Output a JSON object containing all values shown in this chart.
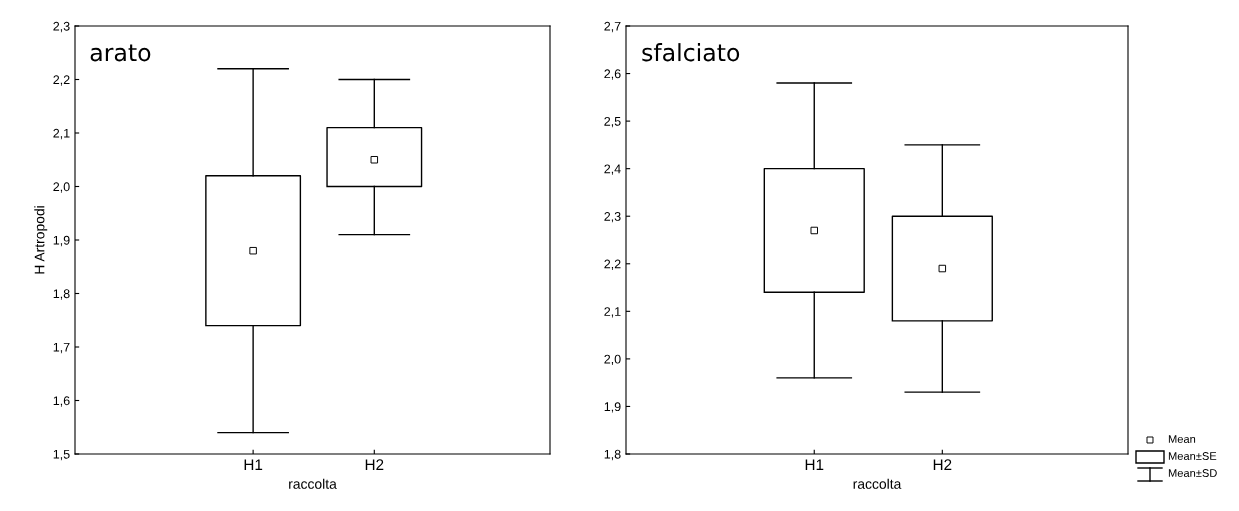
{
  "chart_data": [
    {
      "type": "box",
      "title": "arato",
      "xlabel": "raccolta",
      "ylabel": "H Artropodi",
      "categories": [
        "H1",
        "H2"
      ],
      "boxes": [
        {
          "low": 1.54,
          "q1": 1.74,
          "q3": 2.02,
          "high": 2.22,
          "mean": 1.88
        },
        {
          "low": 1.91,
          "q1": 2.0,
          "q3": 2.11,
          "high": 2.2,
          "mean": 2.05
        }
      ],
      "ylim": [
        1.5,
        2.3
      ],
      "yticks": [
        {
          "value": 1.5,
          "label": "1,5"
        },
        {
          "value": 1.6,
          "label": "1,6"
        },
        {
          "value": 1.7,
          "label": "1,7"
        },
        {
          "value": 1.8,
          "label": "1,8"
        },
        {
          "value": 1.9,
          "label": "1,9"
        },
        {
          "value": 2.0,
          "label": "2,0"
        },
        {
          "value": 2.1,
          "label": "2,1"
        },
        {
          "value": 2.2,
          "label": "2,2"
        },
        {
          "value": 2.3,
          "label": "2,3"
        }
      ],
      "grid": false
    },
    {
      "type": "box",
      "title": "sfalciato",
      "xlabel": "raccolta",
      "categories": [
        "H1",
        "H2"
      ],
      "boxes": [
        {
          "low": 1.96,
          "q1": 2.14,
          "q3": 2.4,
          "high": 2.58,
          "mean": 2.27
        },
        {
          "low": 1.93,
          "q1": 2.08,
          "q3": 2.3,
          "high": 2.45,
          "mean": 2.19
        }
      ],
      "ylim": [
        1.8,
        2.7
      ],
      "yticks": [
        {
          "value": 1.8,
          "label": "1,8"
        },
        {
          "value": 1.9,
          "label": "1,9"
        },
        {
          "value": 2.0,
          "label": "2,0"
        },
        {
          "value": 2.1,
          "label": "2,1"
        },
        {
          "value": 2.2,
          "label": "2,2"
        },
        {
          "value": 2.3,
          "label": "2,3"
        },
        {
          "value": 2.4,
          "label": "2,4"
        },
        {
          "value": 2.5,
          "label": "2,5"
        },
        {
          "value": 2.6,
          "label": "2,6"
        },
        {
          "value": 2.7,
          "label": "2,7"
        }
      ],
      "grid": false,
      "annotations": [
        "Mean",
        "Mean±SE",
        "Mean±SD"
      ]
    }
  ]
}
